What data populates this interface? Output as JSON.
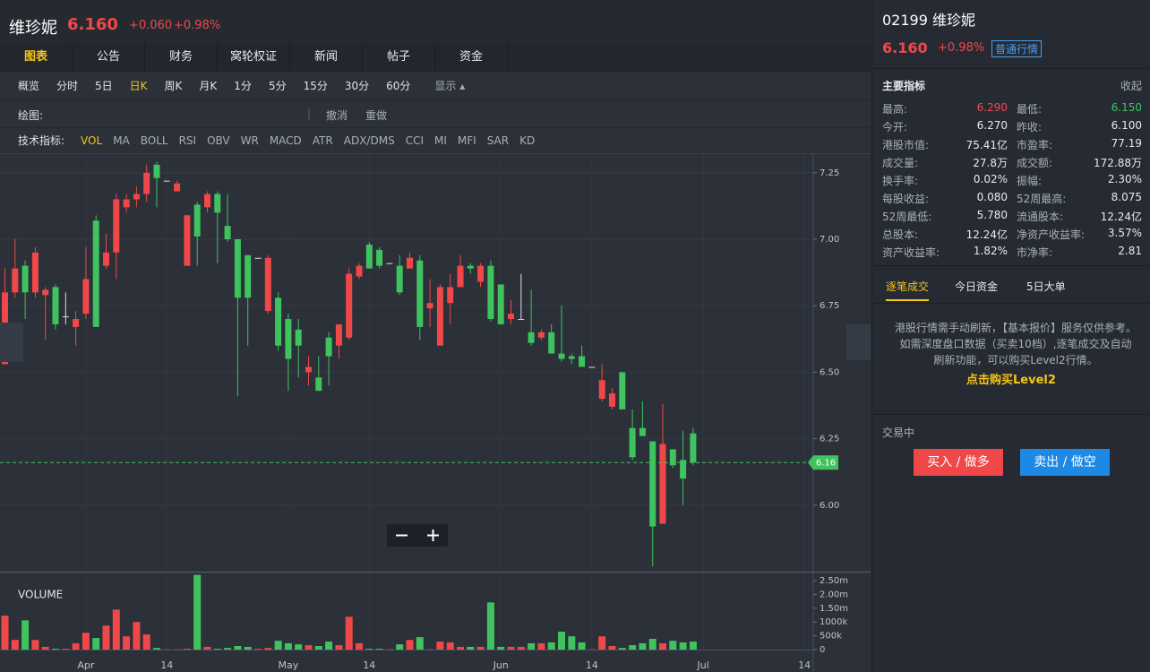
{
  "header": {
    "name": "维珍妮",
    "price": "6.160",
    "change": "+0.060",
    "change_pct": "+0.98%"
  },
  "tabs": [
    "图表",
    "公告",
    "财务",
    "窝轮权证",
    "新闻",
    "帖子",
    "资金"
  ],
  "periods": [
    "概览",
    "分时",
    "5日",
    "日K",
    "周K",
    "月K",
    "1分",
    "5分",
    "15分",
    "30分",
    "60分",
    "显示 ▴"
  ],
  "drawing": {
    "label": "绘图:",
    "separator": "|",
    "undo": "撤消",
    "redo": "重做"
  },
  "indicators": {
    "label": "技术指标:",
    "items": [
      "VOL",
      "MA",
      "BOLL",
      "RSI",
      "OBV",
      "WR",
      "MACD",
      "ATR",
      "ADX/DMS",
      "CCI",
      "MI",
      "MFI",
      "SAR",
      "KD"
    ]
  },
  "chart_data": [
    {
      "type": "candlestick",
      "up_color": "#f04848",
      "down_color": "#3fc35f",
      "flat_color": "#dddddd",
      "categories": [
        null,
        null,
        null,
        null,
        null,
        null,
        null,
        null,
        "Apr",
        null,
        null,
        null,
        null,
        null,
        null,
        null,
        "14",
        null,
        null,
        null,
        null,
        null,
        null,
        null,
        null,
        null,
        null,
        null,
        "May",
        null,
        null,
        null,
        null,
        null,
        null,
        null,
        "14",
        null,
        null,
        null,
        null,
        null,
        null,
        null,
        null,
        null,
        null,
        null,
        null,
        "Jun",
        null,
        null,
        null,
        null,
        null,
        null,
        null,
        null,
        "14",
        null,
        null,
        null,
        null,
        null,
        null,
        null,
        null,
        null,
        null,
        "Jul",
        null,
        null,
        null,
        null,
        null,
        null,
        null,
        null,
        null,
        "14"
      ],
      "open": [
        6.53,
        6.8,
        6.9,
        6.8,
        6.79,
        6.82,
        6.71,
        6.67,
        6.72,
        7.07,
        6.9,
        6.95,
        7.12,
        7.15,
        7.17,
        7.28,
        7.22,
        7.18,
        6.9,
        7.13,
        7.12,
        7.17,
        7.05,
        7.0,
        6.94,
        6.93,
        6.73,
        6.78,
        6.7,
        6.66,
        6.5,
        6.48,
        6.63,
        6.6,
        6.63,
        6.86,
        6.98,
        6.96,
        6.91,
        6.9,
        6.89,
        6.92,
        6.74,
        6.6,
        6.76,
        6.82,
        6.9,
        6.84,
        6.9,
        6.83,
        6.7,
        6.7,
        6.65,
        6.63,
        6.65,
        6.57,
        6.56,
        6.56,
        6.52,
        6.4,
        6.37,
        6.5,
        6.29,
        6.29,
        6.24,
        5.93,
        6.21,
        6.17,
        6.27,
        null,
        null,
        null,
        null,
        null,
        null,
        null,
        null,
        null,
        null,
        null
      ],
      "high": [
        6.89,
        7.0,
        6.92,
        6.97,
        6.82,
        6.83,
        6.8,
        6.73,
        6.97,
        7.09,
        7.02,
        7.17,
        7.17,
        7.2,
        7.28,
        7.29,
        7.22,
        7.22,
        7.09,
        7.14,
        7.18,
        7.18,
        7.17,
        7.0,
        6.94,
        6.93,
        6.94,
        6.8,
        6.72,
        6.7,
        6.56,
        6.56,
        6.65,
        6.68,
        6.89,
        6.91,
        6.99,
        6.97,
        6.91,
        6.94,
        6.95,
        6.94,
        6.85,
        6.83,
        6.87,
        6.94,
        6.91,
        6.91,
        6.92,
        6.83,
        6.77,
        6.87,
        6.81,
        6.66,
        6.68,
        6.75,
        6.57,
        6.6,
        6.52,
        6.53,
        6.44,
        6.5,
        6.36,
        6.39,
        6.24,
        6.38,
        6.21,
        6.28,
        6.29,
        null,
        null,
        null,
        null,
        null,
        null,
        null,
        null,
        null,
        null,
        null
      ],
      "low": [
        6.53,
        6.78,
        6.7,
        6.78,
        6.62,
        6.66,
        6.68,
        6.6,
        6.7,
        6.67,
        6.89,
        6.85,
        7.1,
        7.12,
        7.14,
        7.12,
        7.22,
        7.18,
        6.9,
        6.9,
        7.1,
        6.91,
        6.99,
        6.41,
        6.6,
        6.93,
        6.72,
        6.58,
        6.43,
        6.48,
        6.45,
        6.43,
        6.45,
        6.55,
        6.62,
        6.85,
        6.89,
        6.89,
        6.91,
        6.79,
        6.89,
        6.62,
        6.67,
        6.6,
        6.68,
        6.82,
        6.87,
        6.82,
        6.69,
        6.68,
        6.68,
        6.7,
        6.6,
        6.62,
        6.57,
        6.54,
        6.53,
        6.52,
        6.52,
        6.39,
        6.36,
        6.36,
        6.17,
        6.26,
        5.77,
        5.93,
        6.14,
        6.0,
        6.15,
        null,
        null,
        null,
        null,
        null,
        null,
        null,
        null,
        null,
        null,
        null
      ],
      "close": [
        6.8,
        6.89,
        6.8,
        6.95,
        6.81,
        6.68,
        6.71,
        6.7,
        6.85,
        6.67,
        6.95,
        7.15,
        7.15,
        7.17,
        7.25,
        7.23,
        7.22,
        7.21,
        7.09,
        7.01,
        7.17,
        7.1,
        7.0,
        6.78,
        6.78,
        6.93,
        6.93,
        6.6,
        6.55,
        6.6,
        6.52,
        6.43,
        6.56,
        6.68,
        6.87,
        6.9,
        6.89,
        6.9,
        6.91,
        6.8,
        6.93,
        6.67,
        6.76,
        6.82,
        6.82,
        6.9,
        6.89,
        6.9,
        6.7,
        6.68,
        6.72,
        6.7,
        6.61,
        6.65,
        6.57,
        6.55,
        6.55,
        6.52,
        6.52,
        6.47,
        6.42,
        6.36,
        6.18,
        6.26,
        5.92,
        6.23,
        6.15,
        6.1,
        6.16,
        null,
        null,
        null,
        null,
        null,
        null,
        null,
        null,
        null,
        null,
        null
      ],
      "ylim": [
        5.75,
        7.32
      ],
      "yticks": [
        {
          "value": 6,
          "label": "6.00"
        },
        6.25,
        {
          "value": 6.5,
          "label": "6.50"
        },
        6.75,
        {
          "value": 7,
          "label": "7.00"
        },
        7.25
      ],
      "price_line": {
        "value": 6.16,
        "label": "6.16",
        "color": "#3fc35f"
      },
      "grid": true
    },
    {
      "type": "bar",
      "title": "VOLUME",
      "up_color": "#f04848",
      "down_color": "#3fc35f",
      "values": [
        1230000,
        350000,
        1060000,
        350000,
        100000,
        30000,
        30000,
        230000,
        610000,
        420000,
        870000,
        1450000,
        480000,
        1000000,
        550000,
        60000,
        10000,
        10000,
        30000,
        2710000,
        100000,
        30000,
        60000,
        130000,
        100000,
        30000,
        60000,
        320000,
        230000,
        190000,
        160000,
        130000,
        290000,
        160000,
        1190000,
        230000,
        30000,
        30000,
        10000,
        190000,
        350000,
        450000,
        10000,
        290000,
        260000,
        100000,
        100000,
        100000,
        1710000,
        100000,
        100000,
        100000,
        230000,
        230000,
        260000,
        650000,
        480000,
        260000,
        10000,
        480000,
        130000,
        60000,
        160000,
        230000,
        390000,
        230000,
        320000,
        260000,
        290000,
        null,
        null,
        null,
        null,
        null,
        null,
        null,
        null,
        null,
        null,
        null
      ],
      "ylim": [
        0,
        2760000
      ],
      "yticks": [
        0,
        {
          "value": 500000,
          "label": "500k"
        },
        {
          "value": 1000000,
          "label": "1000k"
        },
        {
          "value": 1500000,
          "label": "1.50m"
        },
        {
          "value": 2000000,
          "label": "2.00m"
        },
        {
          "value": 2500000,
          "label": "2.50m"
        }
      ]
    }
  ],
  "sidebar": {
    "title": "02199 维珍妮",
    "price": "6.160",
    "change_pct": "+0.98%",
    "badge": "普通行情",
    "section": "主要指标",
    "collapse": "收起",
    "stats": [
      [
        "最高:",
        "6.290",
        "最低:",
        "6.150"
      ],
      [
        "今开:",
        "6.270",
        "昨收:",
        "6.100"
      ],
      [
        "港股市值:",
        "75.41亿",
        "市盈率:",
        "77.19"
      ],
      [
        "成交量:",
        "27.8万",
        "成交额:",
        "172.88万"
      ],
      [
        "换手率:",
        "0.02%",
        "振幅:",
        "2.30%"
      ],
      [
        "每股收益:",
        "0.080",
        "52周最高:",
        "8.075"
      ],
      [
        "52周最低:",
        "5.780",
        "流通股本:",
        "12.24亿"
      ],
      [
        "总股本:",
        "12.24亿",
        "净资产收益率:",
        "3.57%"
      ],
      [
        "资产收益率:",
        "1.82%",
        "市净率:",
        "2.81"
      ]
    ],
    "trade_tabs": [
      "逐笔成交",
      "今日资金",
      "5日大单"
    ],
    "notice": "港股行情需手动刷新，【基本报价】服务仅供参考。如需深度盘口数据（买卖10档）,逐笔成交及自动刷新功能，可以购买Level2行情。",
    "notice_link": "点击购买Level2",
    "status": "交易中",
    "buy": "买入 / 做多",
    "sell": "卖出 / 做空"
  }
}
